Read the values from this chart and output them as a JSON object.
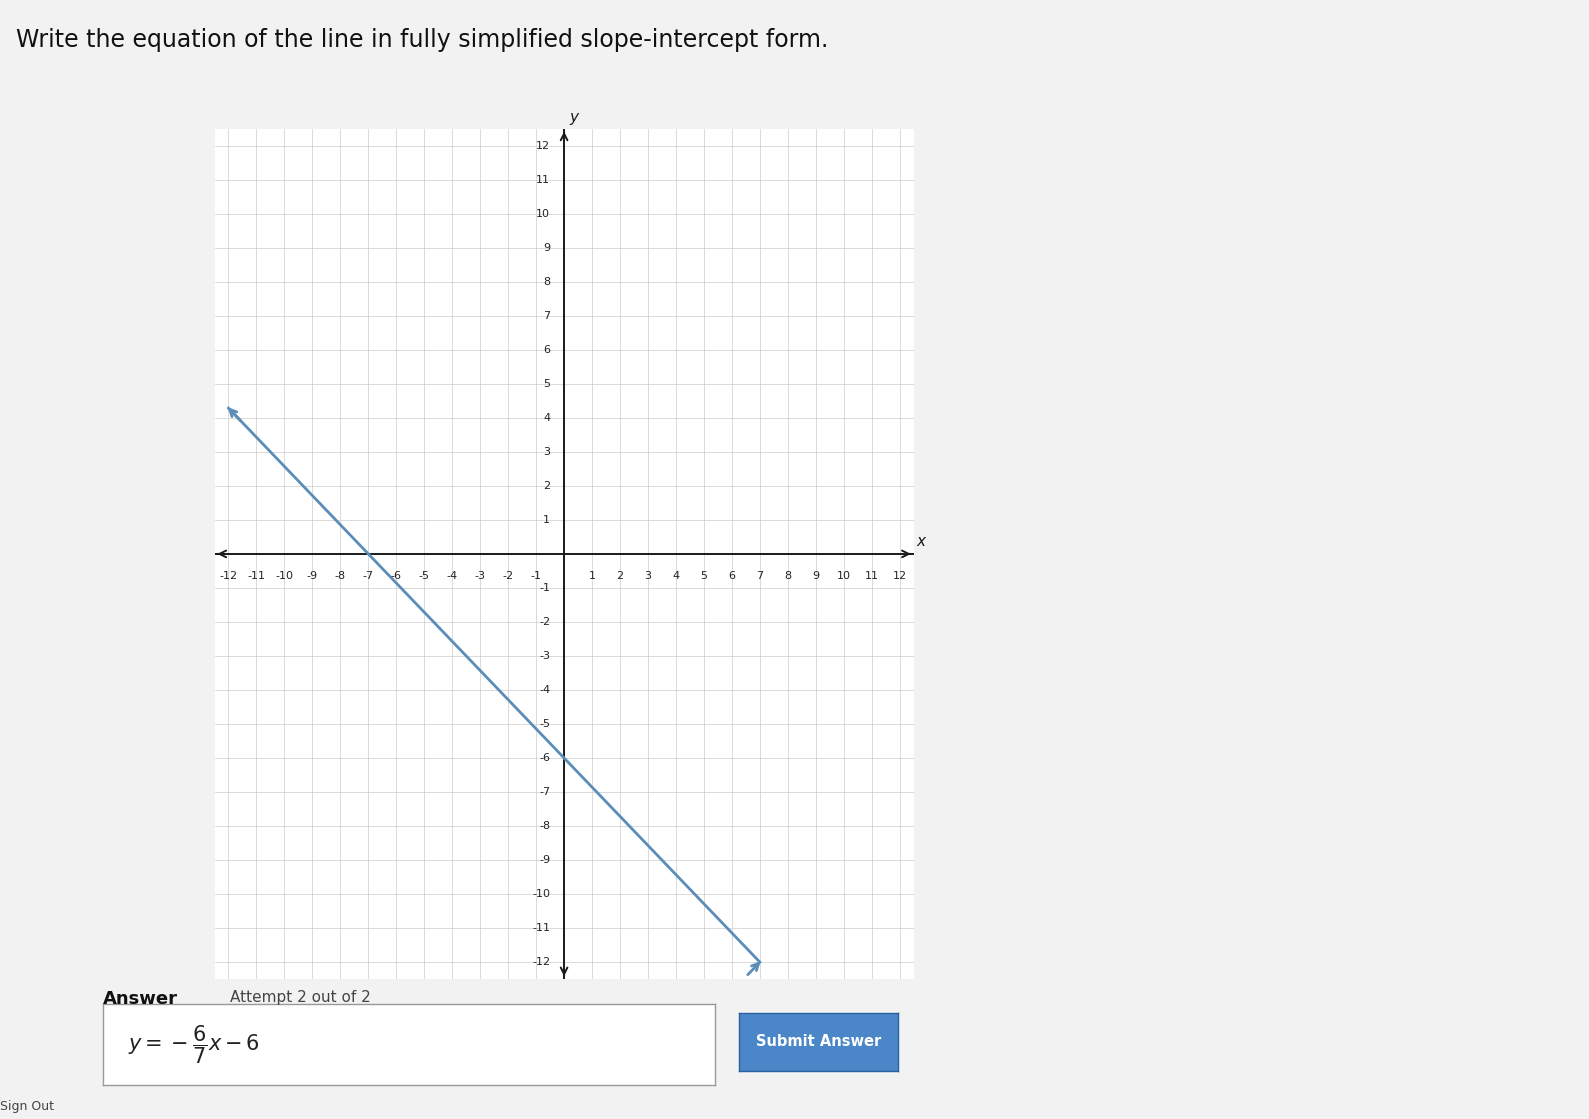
{
  "title": "Write the equation of the line in fully simplified slope-intercept form.",
  "title_fontsize": 17,
  "page_background": "#f2f2f2",
  "graph_background": "#ffffff",
  "slope": -0.857142857,
  "intercept": -6,
  "x_range": [
    -12,
    12
  ],
  "y_range": [
    -12,
    12
  ],
  "line_color": "#5b8db8",
  "line_width": 2.0,
  "axis_color": "#1a1a1a",
  "grid_color": "#cccccc",
  "grid_linewidth": 0.5,
  "tick_color": "#222222",
  "tick_fontsize": 8,
  "answer_label": "Answer",
  "attempt_text": "Attempt 2 out of 2",
  "submit_button_text": "Submit Answer",
  "submit_button_color": "#4a86c8",
  "answer_box_bg": "#ffffff",
  "answer_box_border": "#999999",
  "x_label": "x",
  "y_label": "y",
  "sign_out_text": "Sign Out"
}
